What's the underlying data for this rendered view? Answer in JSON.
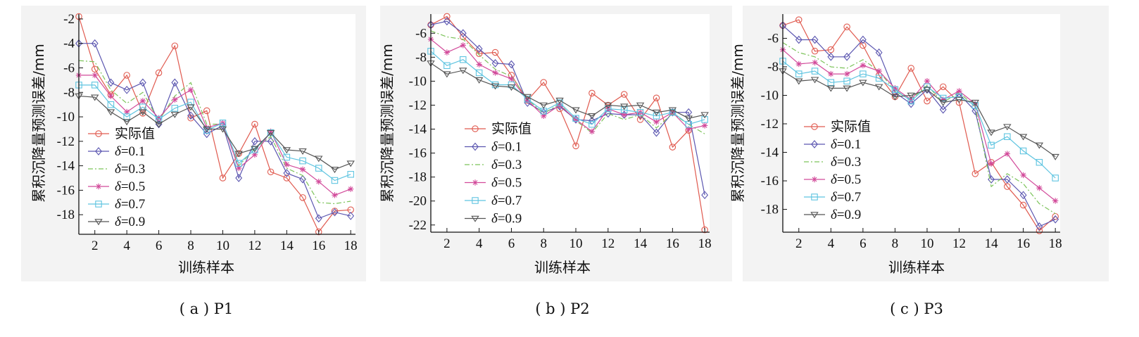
{
  "figure": {
    "xlabel": "训练样本",
    "ylabel": "累积沉降量预测误差/mm"
  },
  "legend_labels": [
    "实际值",
    "δ=0.1",
    "δ=0.3",
    "δ=0.5",
    "δ=0.7",
    "δ=0.9"
  ],
  "series_styles": [
    {
      "color": "#e05a4f",
      "marker": "circle",
      "dash": ""
    },
    {
      "color": "#5b56b0",
      "marker": "diamond",
      "dash": ""
    },
    {
      "color": "#7cc35a",
      "marker": "none",
      "dash": "7,3,2,3"
    },
    {
      "color": "#d24a9a",
      "marker": "star",
      "dash": ""
    },
    {
      "color": "#5ec4e0",
      "marker": "square",
      "dash": ""
    },
    {
      "color": "#555555",
      "marker": "triangle-down",
      "dash": ""
    }
  ],
  "chart_data": [
    {
      "type": "line",
      "caption": "( a ) P1",
      "xlabel": "训练样本",
      "ylabel": "累积沉降量预测误差/mm",
      "xlim": [
        1,
        18.3
      ],
      "ylim": [
        -19.6,
        -1.6
      ],
      "xticks": [
        2,
        4,
        6,
        8,
        10,
        12,
        14,
        16,
        18
      ],
      "yticks": [
        -2,
        -4,
        -6,
        -8,
        -10,
        -12,
        -14,
        -16,
        -18
      ],
      "x": [
        1,
        2,
        3,
        4,
        5,
        6,
        7,
        8,
        9,
        10,
        11,
        12,
        13,
        14,
        15,
        16,
        17,
        18
      ],
      "series": [
        {
          "name": "实际值",
          "values": [
            -1.8,
            -6.1,
            -8.2,
            -6.6,
            -9.7,
            -6.4,
            -4.2,
            -10.1,
            -9.5,
            -15.0,
            -13.0,
            -10.6,
            -14.5,
            -15.0,
            -16.6,
            -19.4,
            -17.7,
            -17.6
          ]
        },
        {
          "name": "δ=0.1",
          "values": [
            -4.0,
            -4.0,
            -7.2,
            -7.8,
            -7.2,
            -10.6,
            -7.2,
            -9.9,
            -11.4,
            -10.7,
            -15.0,
            -12.0,
            -12.0,
            -14.6,
            -15.1,
            -18.3,
            -17.8,
            -18.1
          ]
        },
        {
          "name": "δ=0.3",
          "values": [
            -5.4,
            -5.5,
            -7.8,
            -8.9,
            -8.0,
            -10.3,
            -8.3,
            -7.2,
            -10.6,
            -10.6,
            -14.0,
            -12.6,
            -11.6,
            -14.2,
            -14.8,
            -17.0,
            -17.1,
            -16.9
          ]
        },
        {
          "name": "δ=0.5",
          "values": [
            -6.6,
            -6.6,
            -8.3,
            -9.6,
            -8.7,
            -10.1,
            -8.6,
            -7.8,
            -10.9,
            -10.5,
            -14.2,
            -13.1,
            -11.2,
            -13.9,
            -14.3,
            -15.3,
            -16.4,
            -15.9
          ]
        },
        {
          "name": "δ=0.7",
          "values": [
            -7.4,
            -7.4,
            -9.0,
            -10.0,
            -9.2,
            -10.2,
            -9.3,
            -8.8,
            -11.1,
            -10.5,
            -13.8,
            -12.7,
            -11.3,
            -13.3,
            -13.6,
            -14.2,
            -15.2,
            -14.7
          ]
        },
        {
          "name": "δ=0.9",
          "values": [
            -8.3,
            -8.4,
            -9.6,
            -10.4,
            -9.6,
            -10.6,
            -9.8,
            -9.2,
            -11.0,
            -11.0,
            -13.0,
            -12.6,
            -11.3,
            -12.7,
            -12.8,
            -13.4,
            -14.3,
            -13.8
          ]
        }
      ]
    },
    {
      "type": "line",
      "caption": "( b ) P2",
      "xlabel": "训练样本",
      "ylabel": "累积沉降量预测误差/mm",
      "xlim": [
        1,
        18.3
      ],
      "ylim": [
        -22.6,
        -4.4
      ],
      "xticks": [
        2,
        4,
        6,
        8,
        10,
        12,
        14,
        16,
        18
      ],
      "yticks": [
        -6,
        -8,
        -10,
        -12,
        -14,
        -16,
        -18,
        -20,
        -22
      ],
      "x": [
        1,
        2,
        3,
        4,
        5,
        6,
        7,
        8,
        9,
        10,
        11,
        12,
        13,
        14,
        15,
        16,
        17,
        18
      ],
      "series": [
        {
          "name": "实际值",
          "values": [
            -5.3,
            -4.6,
            -6.3,
            -7.7,
            -7.6,
            -9.5,
            -11.6,
            -10.1,
            -12.3,
            -15.4,
            -11.0,
            -12.0,
            -11.1,
            -13.2,
            -11.4,
            -15.5,
            -14.1,
            -22.4
          ]
        },
        {
          "name": "δ=0.1",
          "values": [
            -5.3,
            -5.0,
            -6.0,
            -7.3,
            -8.5,
            -8.6,
            -11.8,
            -12.6,
            -12.1,
            -13.2,
            -13.3,
            -12.7,
            -12.8,
            -12.8,
            -14.3,
            -12.6,
            -12.6,
            -19.5
          ]
        },
        {
          "name": "δ=0.3",
          "values": [
            -5.8,
            -6.3,
            -6.5,
            -7.8,
            -9.0,
            -9.6,
            -11.5,
            -12.7,
            -11.9,
            -13.3,
            -14.3,
            -12.7,
            -13.2,
            -12.8,
            -13.9,
            -12.7,
            -13.6,
            -14.4
          ]
        },
        {
          "name": "δ=0.5",
          "values": [
            -6.5,
            -7.6,
            -7.0,
            -8.6,
            -9.3,
            -9.8,
            -11.6,
            -12.9,
            -12.0,
            -13.2,
            -14.2,
            -12.3,
            -12.8,
            -12.6,
            -13.4,
            -12.6,
            -14.0,
            -13.7
          ]
        },
        {
          "name": "δ=0.7",
          "values": [
            -7.5,
            -8.7,
            -8.2,
            -9.3,
            -10.3,
            -10.3,
            -11.5,
            -12.5,
            -11.8,
            -13.1,
            -13.6,
            -12.3,
            -12.4,
            -12.6,
            -12.9,
            -12.6,
            -13.6,
            -13.2
          ]
        },
        {
          "name": "δ=0.9",
          "values": [
            -8.5,
            -9.4,
            -9.1,
            -9.9,
            -10.4,
            -10.5,
            -11.3,
            -12.0,
            -11.6,
            -12.4,
            -12.9,
            -12.0,
            -12.1,
            -12.0,
            -12.6,
            -12.4,
            -13.1,
            -12.8
          ]
        }
      ]
    },
    {
      "type": "line",
      "caption": "( c ) P3",
      "xlabel": "训练样本",
      "ylabel": "累积沉降量预测误差/mm",
      "xlim": [
        1,
        18.3
      ],
      "ylim": [
        -19.6,
        -4.3
      ],
      "xticks": [
        2,
        4,
        6,
        8,
        10,
        12,
        14,
        16,
        18
      ],
      "yticks": [
        -6,
        -8,
        -10,
        -12,
        -14,
        -16,
        -18
      ],
      "x": [
        1,
        2,
        3,
        4,
        5,
        6,
        7,
        8,
        9,
        10,
        11,
        12,
        13,
        14,
        15,
        16,
        17,
        18
      ],
      "series": [
        {
          "name": "实际值",
          "values": [
            -5.1,
            -4.7,
            -6.9,
            -6.8,
            -5.2,
            -6.5,
            -8.6,
            -10.1,
            -8.1,
            -10.4,
            -9.4,
            -10.5,
            -15.5,
            -14.7,
            -16.4,
            -17.7,
            -19.5,
            -18.5
          ]
        },
        {
          "name": "δ=0.1",
          "values": [
            -5.1,
            -6.1,
            -6.1,
            -7.3,
            -7.3,
            -6.1,
            -7.0,
            -9.8,
            -10.6,
            -9.6,
            -11.0,
            -9.9,
            -11.1,
            -15.9,
            -15.9,
            -17.0,
            -19.2,
            -18.7
          ]
        },
        {
          "name": "δ=0.3",
          "values": [
            -6.3,
            -7.0,
            -7.3,
            -8.0,
            -8.1,
            -7.5,
            -8.3,
            -9.7,
            -10.3,
            -9.3,
            -10.5,
            -9.8,
            -10.8,
            -16.4,
            -15.5,
            -16.2,
            -17.6,
            -18.3
          ]
        },
        {
          "name": "δ=0.5",
          "values": [
            -6.8,
            -7.8,
            -7.7,
            -8.5,
            -8.5,
            -7.9,
            -8.3,
            -9.5,
            -10.3,
            -9.0,
            -10.3,
            -9.7,
            -10.6,
            -14.8,
            -14.1,
            -15.6,
            -16.5,
            -17.4
          ]
        },
        {
          "name": "δ=0.7",
          "values": [
            -7.6,
            -8.5,
            -8.3,
            -9.1,
            -9.0,
            -8.5,
            -8.8,
            -9.6,
            -10.4,
            -9.4,
            -10.2,
            -10.1,
            -10.7,
            -13.5,
            -12.9,
            -13.9,
            -14.7,
            -15.8
          ]
        },
        {
          "name": "δ=0.9",
          "values": [
            -8.3,
            -9.0,
            -8.9,
            -9.5,
            -9.5,
            -9.1,
            -9.4,
            -10.1,
            -10.0,
            -9.6,
            -10.5,
            -10.3,
            -10.5,
            -12.6,
            -12.2,
            -12.9,
            -13.5,
            -14.3
          ]
        }
      ]
    }
  ]
}
